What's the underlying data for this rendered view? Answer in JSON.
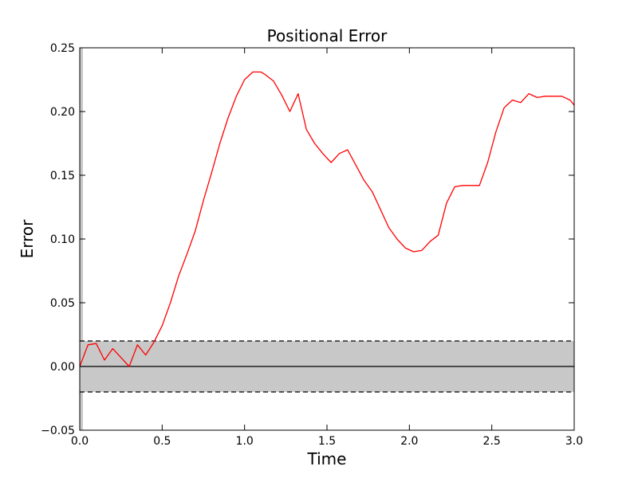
{
  "chart_data": {
    "type": "line",
    "title": "Positional Error",
    "xlabel": "Time",
    "ylabel": "Error",
    "xlim": [
      0.0,
      3.0
    ],
    "ylim": [
      -0.05,
      0.25
    ],
    "xticks": [
      0.0,
      0.5,
      1.0,
      1.5,
      2.0,
      2.5,
      3.0
    ],
    "xtick_labels": [
      "0.0",
      "0.5",
      "1.0",
      "1.5",
      "2.0",
      "2.5",
      "3.0"
    ],
    "yticks": [
      -0.05,
      0.0,
      0.05,
      0.1,
      0.15,
      0.2,
      0.25
    ],
    "ytick_labels": [
      "−0.05",
      "0.00",
      "0.05",
      "0.10",
      "0.15",
      "0.20",
      "0.25"
    ],
    "grid": false,
    "tolerance_band": {
      "lower": -0.02,
      "upper": 0.02,
      "color": "#c8c8c8"
    },
    "zero_line": 0.0,
    "series_color": "#ff0000",
    "series": [
      {
        "x": [
          0.0,
          0.05,
          0.1,
          0.15,
          0.2,
          0.25,
          0.3,
          0.35,
          0.4,
          0.45,
          0.5,
          0.55,
          0.6,
          0.65,
          0.7,
          0.75,
          0.8,
          0.85,
          0.9,
          0.95,
          1.0,
          1.05,
          1.1,
          1.125,
          1.175,
          1.225,
          1.275,
          1.325,
          1.375,
          1.425,
          1.475,
          1.525,
          1.575,
          1.625,
          1.675,
          1.725,
          1.775,
          1.825,
          1.875,
          1.925,
          1.975,
          2.025,
          2.075,
          2.125,
          2.175,
          2.225,
          2.275,
          2.325,
          2.375,
          2.425,
          2.475,
          2.525,
          2.575,
          2.625,
          2.675,
          2.725,
          2.775,
          2.825,
          2.875,
          2.925,
          2.975,
          3.0
        ],
        "values": [
          0.0,
          0.017,
          0.018,
          0.005,
          0.014,
          0.007,
          0.0,
          0.017,
          0.009,
          0.019,
          0.032,
          0.05,
          0.071,
          0.088,
          0.106,
          0.13,
          0.152,
          0.175,
          0.195,
          0.212,
          0.225,
          0.231,
          0.231,
          0.229,
          0.224,
          0.213,
          0.2,
          0.214,
          0.186,
          0.175,
          0.167,
          0.16,
          0.167,
          0.17,
          0.158,
          0.146,
          0.137,
          0.123,
          0.109,
          0.1,
          0.093,
          0.09,
          0.091,
          0.098,
          0.103,
          0.128,
          0.141,
          0.142,
          0.142,
          0.142,
          0.16,
          0.184,
          0.203,
          0.209,
          0.207,
          0.214,
          0.211,
          0.212,
          0.212,
          0.212,
          0.209,
          0.205
        ]
      }
    ]
  }
}
